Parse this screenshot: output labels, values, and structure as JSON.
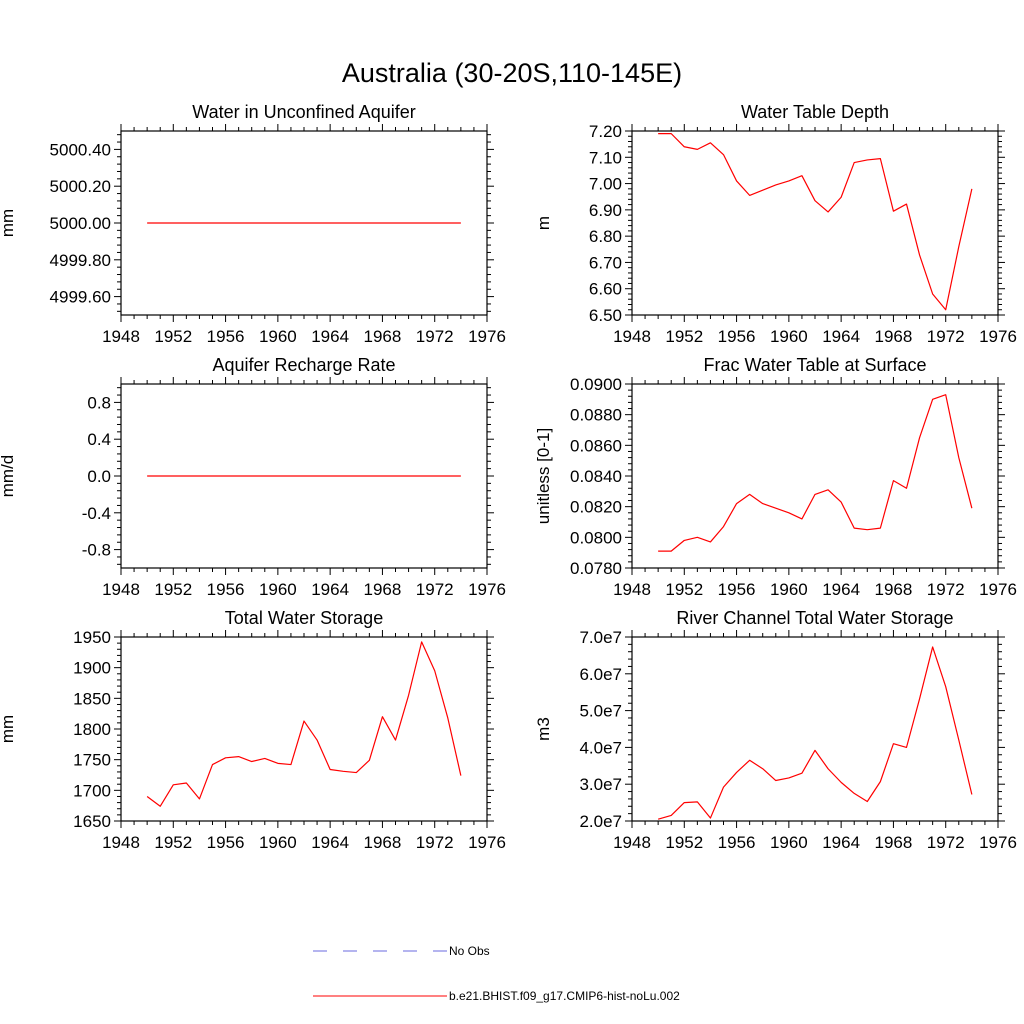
{
  "figure_title": "Australia (30-20S,110-145E)",
  "legend": [
    {
      "label": "No Obs",
      "style": "dashed",
      "color": "#6a6adf"
    },
    {
      "label": "b.e21.BHIST.f09_g17.CMIP6-hist-noLu.002",
      "style": "solid",
      "color": "#ff0000"
    }
  ],
  "chart_data": [
    {
      "type": "line",
      "title": "Water in Unconfined Aquifer",
      "xlabel": "",
      "ylabel": "mm",
      "xlim": [
        1948,
        1976
      ],
      "ylim": [
        4999.5,
        5000.5
      ],
      "xticks": [
        1948,
        1952,
        1956,
        1960,
        1964,
        1968,
        1972,
        1976
      ],
      "yticks": [
        4999.6,
        4999.8,
        5000.0,
        5000.2,
        5000.4
      ],
      "ytick_labels": [
        "4999.60",
        "4999.80",
        "5000.00",
        "5000.20",
        "5000.40"
      ],
      "x": [
        1950,
        1951,
        1952,
        1953,
        1954,
        1955,
        1956,
        1957,
        1958,
        1959,
        1960,
        1961,
        1962,
        1963,
        1964,
        1965,
        1966,
        1967,
        1968,
        1969,
        1970,
        1971,
        1972,
        1973,
        1974
      ],
      "series": [
        {
          "name": "b.e21.BHIST.f09_g17.CMIP6-hist-noLu.002",
          "color": "#ff0000",
          "values": [
            5000,
            5000,
            5000,
            5000,
            5000,
            5000,
            5000,
            5000,
            5000,
            5000,
            5000,
            5000,
            5000,
            5000,
            5000,
            5000,
            5000,
            5000,
            5000,
            5000,
            5000,
            5000,
            5000,
            5000,
            5000
          ]
        }
      ]
    },
    {
      "type": "line",
      "title": "Water Table Depth",
      "xlabel": "",
      "ylabel": "m",
      "xlim": [
        1948,
        1976
      ],
      "ylim": [
        6.5,
        7.2
      ],
      "xticks": [
        1948,
        1952,
        1956,
        1960,
        1964,
        1968,
        1972,
        1976
      ],
      "yticks": [
        6.5,
        6.6,
        6.7,
        6.8,
        6.9,
        7.0,
        7.1,
        7.2
      ],
      "ytick_labels": [
        "6.50",
        "6.60",
        "6.70",
        "6.80",
        "6.90",
        "7.00",
        "7.10",
        "7.20"
      ],
      "x": [
        1950,
        1951,
        1952,
        1953,
        1954,
        1955,
        1956,
        1957,
        1958,
        1959,
        1960,
        1961,
        1962,
        1963,
        1964,
        1965,
        1966,
        1967,
        1968,
        1969,
        1970,
        1971,
        1972,
        1973,
        1974
      ],
      "series": [
        {
          "name": "b.e21.BHIST.f09_g17.CMIP6-hist-noLu.002",
          "color": "#ff0000",
          "values": [
            7.19,
            7.19,
            7.14,
            7.13,
            7.155,
            7.11,
            7.01,
            6.955,
            6.975,
            6.995,
            7.01,
            7.03,
            6.935,
            6.892,
            6.948,
            7.08,
            7.09,
            7.095,
            6.895,
            6.922,
            6.728,
            6.58,
            6.52,
            6.76,
            6.98
          ]
        }
      ]
    },
    {
      "type": "line",
      "title": "Aquifer Recharge Rate",
      "xlabel": "",
      "ylabel": "mm/d",
      "xlim": [
        1948,
        1976
      ],
      "ylim": [
        -1.0,
        1.0
      ],
      "xticks": [
        1948,
        1952,
        1956,
        1960,
        1964,
        1968,
        1972,
        1976
      ],
      "yticks": [
        -0.8,
        -0.4,
        0.0,
        0.4,
        0.8
      ],
      "ytick_labels": [
        "-0.8",
        "-0.4",
        "0.0",
        "0.4",
        "0.8"
      ],
      "x": [
        1950,
        1951,
        1952,
        1953,
        1954,
        1955,
        1956,
        1957,
        1958,
        1959,
        1960,
        1961,
        1962,
        1963,
        1964,
        1965,
        1966,
        1967,
        1968,
        1969,
        1970,
        1971,
        1972,
        1973,
        1974
      ],
      "series": [
        {
          "name": "b.e21.BHIST.f09_g17.CMIP6-hist-noLu.002",
          "color": "#ff0000",
          "values": [
            0,
            0,
            0,
            0,
            0,
            0,
            0,
            0,
            0,
            0,
            0,
            0,
            0,
            0,
            0,
            0,
            0,
            0,
            0,
            0,
            0,
            0,
            0,
            0,
            0
          ]
        }
      ]
    },
    {
      "type": "line",
      "title": "Frac Water Table at Surface",
      "xlabel": "",
      "ylabel": "unitless [0-1]",
      "xlim": [
        1948,
        1976
      ],
      "ylim": [
        0.078,
        0.09
      ],
      "xticks": [
        1948,
        1952,
        1956,
        1960,
        1964,
        1968,
        1972,
        1976
      ],
      "yticks": [
        0.078,
        0.08,
        0.082,
        0.084,
        0.086,
        0.088,
        0.09
      ],
      "ytick_labels": [
        "0.0780",
        "0.0800",
        "0.0820",
        "0.0840",
        "0.0860",
        "0.0880",
        "0.0900"
      ],
      "x": [
        1950,
        1951,
        1952,
        1953,
        1954,
        1955,
        1956,
        1957,
        1958,
        1959,
        1960,
        1961,
        1962,
        1963,
        1964,
        1965,
        1966,
        1967,
        1968,
        1969,
        1970,
        1971,
        1972,
        1973,
        1974
      ],
      "series": [
        {
          "name": "b.e21.BHIST.f09_g17.CMIP6-hist-noLu.002",
          "color": "#ff0000",
          "values": [
            0.0791,
            0.0791,
            0.0798,
            0.08,
            0.0797,
            0.0807,
            0.0822,
            0.0828,
            0.0822,
            0.0819,
            0.0816,
            0.0812,
            0.0828,
            0.0831,
            0.0823,
            0.0806,
            0.0805,
            0.0806,
            0.0837,
            0.0832,
            0.0865,
            0.089,
            0.0893,
            0.0852,
            0.0819
          ]
        }
      ]
    },
    {
      "type": "line",
      "title": "Total Water Storage",
      "xlabel": "",
      "ylabel": "mm",
      "xlim": [
        1948,
        1976
      ],
      "ylim": [
        1650,
        1950
      ],
      "xticks": [
        1948,
        1952,
        1956,
        1960,
        1964,
        1968,
        1972,
        1976
      ],
      "yticks": [
        1650,
        1700,
        1750,
        1800,
        1850,
        1900,
        1950
      ],
      "ytick_labels": [
        "1650",
        "1700",
        "1750",
        "1800",
        "1850",
        "1900",
        "1950"
      ],
      "x": [
        1950,
        1951,
        1952,
        1953,
        1954,
        1955,
        1956,
        1957,
        1958,
        1959,
        1960,
        1961,
        1962,
        1963,
        1964,
        1965,
        1966,
        1967,
        1968,
        1969,
        1970,
        1971,
        1972,
        1973,
        1974
      ],
      "series": [
        {
          "name": "b.e21.BHIST.f09_g17.CMIP6-hist-noLu.002",
          "color": "#ff0000",
          "values": [
            1690,
            1674,
            1709,
            1712,
            1686,
            1742,
            1753,
            1755,
            1747,
            1752,
            1744,
            1742,
            1813,
            1782,
            1734,
            1731,
            1729,
            1749,
            1820,
            1782,
            1855,
            1942,
            1895,
            1818,
            1724
          ]
        }
      ]
    },
    {
      "type": "line",
      "title": "River Channel Total Water Storage",
      "xlabel": "",
      "ylabel": "m3",
      "xlim": [
        1948,
        1976
      ],
      "ylim": [
        20000000,
        70000000
      ],
      "xticks": [
        1948,
        1952,
        1956,
        1960,
        1964,
        1968,
        1972,
        1976
      ],
      "yticks": [
        20000000,
        30000000,
        40000000,
        50000000,
        60000000,
        70000000
      ],
      "ytick_labels": [
        "2.0e7",
        "3.0e7",
        "4.0e7",
        "5.0e7",
        "6.0e7",
        "7.0e7"
      ],
      "x": [
        1950,
        1951,
        1952,
        1953,
        1954,
        1955,
        1956,
        1957,
        1958,
        1959,
        1960,
        1961,
        1962,
        1963,
        1964,
        1965,
        1966,
        1967,
        1968,
        1969,
        1970,
        1971,
        1972,
        1973,
        1974
      ],
      "series": [
        {
          "name": "b.e21.BHIST.f09_g17.CMIP6-hist-noLu.002",
          "color": "#ff0000",
          "values": [
            20500000,
            21500000,
            25000000,
            25200000,
            20800000,
            29200000,
            33200000,
            36500000,
            34200000,
            31000000,
            31700000,
            33000000,
            39200000,
            34200000,
            30500000,
            27500000,
            25300000,
            30700000,
            41000000,
            40000000,
            53200000,
            67300000,
            56500000,
            42000000,
            27200000
          ]
        }
      ]
    }
  ]
}
